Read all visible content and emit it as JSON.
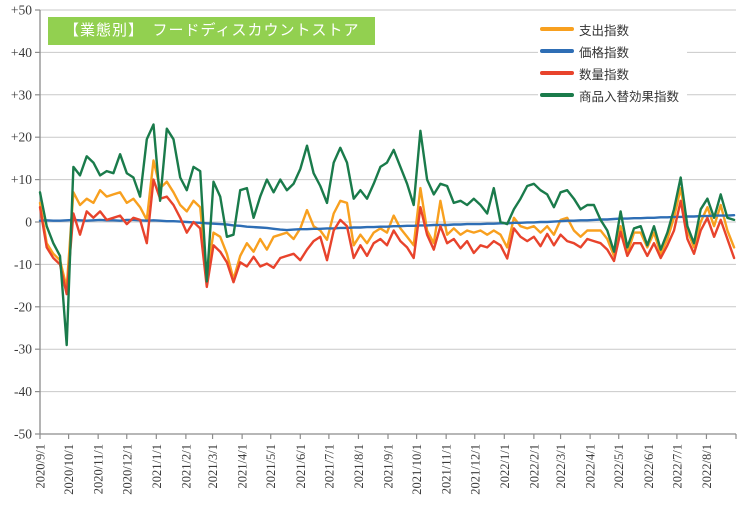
{
  "title": {
    "text": "【業態別】　フードディスカウントストア"
  },
  "colors": {
    "title_bg": "#92D050",
    "title_text": "#FFFFFF",
    "grid": "#C9C9C9",
    "axis": "#8C8C8C",
    "tick_text": "#3B3B3B",
    "expenditure": "#F8A01F",
    "price": "#2E6EB5",
    "quantity": "#E8432C",
    "substitution": "#1A7B4B"
  },
  "axes": {
    "y_min": -50,
    "y_max": 50,
    "y_step": 10,
    "y_tick_labels": [
      "+50",
      "+40",
      "+30",
      "+20",
      "+10",
      "0",
      "-10",
      "-20",
      "-30",
      "-40",
      "-50"
    ],
    "x_tick_labels": [
      "2020/9/1",
      "2020/10/1",
      "2020/11/1",
      "2020/12/1",
      "2021/1/1",
      "2021/2/1",
      "2021/3/1",
      "2021/4/1",
      "2021/5/1",
      "2021/6/1",
      "2021/7/1",
      "2021/8/1",
      "2021/9/1",
      "2021/10/1",
      "2021/11/1",
      "2021/12/1",
      "2022/1/1",
      "2022/2/1",
      "2022/3/1",
      "2022/4/1",
      "2022/5/1",
      "2022/6/1",
      "2022/7/1",
      "2022/8/1"
    ]
  },
  "chart_data": {
    "type": "line",
    "title": "【業態別】　フードディスカウントストア",
    "xlabel": "",
    "ylabel": "",
    "ylim": [
      -50,
      50
    ],
    "grid": true,
    "legend_position": "top-right-inside",
    "x": [
      "2020/9/1",
      "2020/9/8",
      "2020/9/15",
      "2020/9/22",
      "2020/9/29",
      "2020/10/6",
      "2020/10/13",
      "2020/10/20",
      "2020/10/27",
      "2020/11/3",
      "2020/11/10",
      "2020/11/17",
      "2020/11/24",
      "2020/12/1",
      "2020/12/8",
      "2020/12/15",
      "2020/12/22",
      "2020/12/29",
      "2021/1/5",
      "2021/1/12",
      "2021/1/19",
      "2021/1/26",
      "2021/2/2",
      "2021/2/9",
      "2021/2/16",
      "2021/2/23",
      "2021/3/2",
      "2021/3/9",
      "2021/3/16",
      "2021/3/23",
      "2021/3/30",
      "2021/4/6",
      "2021/4/13",
      "2021/4/20",
      "2021/4/27",
      "2021/5/4",
      "2021/5/11",
      "2021/5/18",
      "2021/5/25",
      "2021/6/1",
      "2021/6/8",
      "2021/6/15",
      "2021/6/22",
      "2021/6/29",
      "2021/7/6",
      "2021/7/13",
      "2021/7/20",
      "2021/7/27",
      "2021/8/3",
      "2021/8/10",
      "2021/8/17",
      "2021/8/24",
      "2021/8/31",
      "2021/9/7",
      "2021/9/14",
      "2021/9/21",
      "2021/9/28",
      "2021/10/5",
      "2021/10/12",
      "2021/10/19",
      "2021/10/26",
      "2021/11/2",
      "2021/11/9",
      "2021/11/16",
      "2021/11/23",
      "2021/11/30",
      "2021/12/7",
      "2021/12/14",
      "2021/12/21",
      "2021/12/28",
      "2022/1/4",
      "2022/1/11",
      "2022/1/18",
      "2022/1/25",
      "2022/2/1",
      "2022/2/8",
      "2022/2/15",
      "2022/2/22",
      "2022/3/1",
      "2022/3/8",
      "2022/3/15",
      "2022/3/22",
      "2022/3/29",
      "2022/4/5",
      "2022/4/12",
      "2022/4/19",
      "2022/4/26",
      "2022/5/3",
      "2022/5/10",
      "2022/5/17",
      "2022/5/24",
      "2022/5/31",
      "2022/6/7",
      "2022/6/14",
      "2022/6/21",
      "2022/6/28",
      "2022/7/5",
      "2022/7/12",
      "2022/7/19",
      "2022/7/26",
      "2022/8/2",
      "2022/8/9",
      "2022/8/16",
      "2022/8/23",
      "2022/8/30"
    ],
    "series": [
      {
        "name": "支出指数",
        "color_key": "expenditure",
        "values": [
          4.5,
          -5,
          -7.5,
          -9,
          -15.5,
          7,
          4,
          5.5,
          4.5,
          7.5,
          6,
          6.5,
          7,
          4.5,
          5.5,
          3.5,
          0.5,
          14.5,
          8,
          9.5,
          7,
          4,
          2.5,
          5,
          3.5,
          -12.8,
          -2.5,
          -3.5,
          -7.5,
          -13.5,
          -8,
          -5,
          -7,
          -4,
          -6.5,
          -3.5,
          -3,
          -2.5,
          -4,
          -1.5,
          2.8,
          -1,
          -2,
          -4.2,
          2,
          5,
          4.5,
          -5.5,
          -3,
          -5,
          -2.5,
          -1.5,
          -2.5,
          1.5,
          -1.5,
          -3.5,
          -5.5,
          8,
          -2,
          -5,
          5,
          -3,
          -1.5,
          -3,
          -2,
          -2.5,
          -2,
          -3,
          -2,
          -3,
          -6,
          1,
          -1,
          -1.5,
          -1,
          -2.5,
          -1,
          -3,
          0.5,
          1,
          -2,
          -3.5,
          -2,
          -2,
          -2,
          -4,
          -8,
          -1,
          -7.5,
          -2.5,
          -2.5,
          -6,
          -2.5,
          -7.5,
          -4,
          1,
          8,
          -2,
          -6,
          0,
          3.5,
          -1,
          4,
          -2,
          -6
        ]
      },
      {
        "name": "価格指数",
        "color_key": "price",
        "values": [
          0.3,
          0.4,
          0.3,
          0.3,
          0.4,
          0.5,
          0.4,
          0.3,
          0.4,
          0.5,
          0.4,
          0.4,
          0.3,
          0.5,
          0.5,
          0.4,
          0.3,
          0.4,
          0.3,
          0.2,
          0.2,
          0.1,
          0,
          -0.1,
          -0.2,
          -0.3,
          -0.4,
          -0.5,
          -0.6,
          -0.8,
          -0.9,
          -1.1,
          -1.2,
          -1.3,
          -1.4,
          -1.6,
          -1.8,
          -1.9,
          -1.8,
          -1.7,
          -1.7,
          -1.6,
          -1.6,
          -1.5,
          -1.5,
          -1.4,
          -1.4,
          -1.3,
          -1.3,
          -1.2,
          -1.2,
          -1.1,
          -1.1,
          -1,
          -1,
          -0.9,
          -0.9,
          -0.8,
          -0.8,
          -0.7,
          -0.7,
          -0.7,
          -0.6,
          -0.6,
          -0.5,
          -0.5,
          -0.5,
          -0.4,
          -0.4,
          -0.3,
          -0.3,
          -0.2,
          -0.2,
          -0.1,
          -0.1,
          0,
          0,
          0.1,
          0.2,
          0.3,
          0.3,
          0.4,
          0.4,
          0.5,
          0.6,
          0.6,
          0.7,
          0.8,
          0.8,
          0.9,
          0.9,
          1,
          1,
          1.1,
          1.1,
          1.2,
          1.2,
          1.3,
          1.3,
          1.4,
          1.4,
          1.5,
          1.5,
          1.5,
          1.6
        ]
      },
      {
        "name": "数量指数",
        "color_key": "quantity",
        "values": [
          3.5,
          -6,
          -8.5,
          -10,
          -17,
          2,
          -3,
          2.5,
          1,
          2.5,
          0.5,
          1,
          1.5,
          -0.5,
          1,
          0.5,
          -5,
          10,
          5.5,
          6,
          4,
          1,
          -2.5,
          0,
          -1.5,
          -15.3,
          -5.5,
          -7,
          -9.5,
          -14.2,
          -9.5,
          -10.5,
          -8.2,
          -10.5,
          -9.8,
          -10.8,
          -8.5,
          -8,
          -7.5,
          -9,
          -6.5,
          -4.5,
          -3.5,
          -9,
          -2,
          0.5,
          -1,
          -8.5,
          -5.5,
          -8,
          -5,
          -4,
          -5.5,
          -2,
          -4.5,
          -6,
          -8.5,
          3.5,
          -3,
          -6.5,
          -1,
          -5,
          -4,
          -6.2,
          -4.5,
          -7.3,
          -5.5,
          -6,
          -4.5,
          -5.5,
          -8.6,
          -1.5,
          -3.5,
          -4.5,
          -3.5,
          -5.7,
          -2.8,
          -5.5,
          -3,
          -4.5,
          -5,
          -6,
          -4,
          -4.5,
          -5,
          -6.5,
          -9.2,
          -2.3,
          -8,
          -5,
          -5,
          -8,
          -5,
          -8.5,
          -5.5,
          -2,
          5,
          -4,
          -7.5,
          -2,
          1,
          -3.5,
          0.5,
          -4,
          -8.5
        ]
      },
      {
        "name": "商品入替効果指数",
        "color_key": "substitution",
        "values": [
          7,
          -1,
          -5,
          -8,
          -29,
          13,
          11,
          15.5,
          14,
          11,
          12,
          11.5,
          16,
          11.5,
          10.5,
          6,
          19.5,
          23,
          5,
          22,
          19.5,
          10.5,
          7.5,
          13,
          12,
          -14,
          9.5,
          6,
          -3.5,
          -3,
          7.5,
          8,
          1,
          6,
          10,
          7,
          10,
          7.5,
          9,
          12.5,
          18,
          11.5,
          8.5,
          4.5,
          14,
          17.5,
          14,
          5.5,
          7.5,
          5.5,
          9,
          13,
          14,
          17,
          13,
          9,
          4,
          21.5,
          10,
          6.5,
          9,
          8.5,
          4.5,
          5,
          4,
          5.5,
          4,
          2,
          8,
          0,
          -0.5,
          3,
          5.5,
          8.5,
          9,
          7.5,
          6.5,
          3.5,
          7,
          7.5,
          5.5,
          3,
          4,
          4,
          0.5,
          -2,
          -7,
          2.5,
          -6,
          -1.5,
          -1,
          -5.5,
          -1,
          -6.5,
          -2.5,
          3,
          10.5,
          -1,
          -5,
          3,
          5.5,
          1,
          6.5,
          1,
          0.5
        ]
      }
    ]
  }
}
